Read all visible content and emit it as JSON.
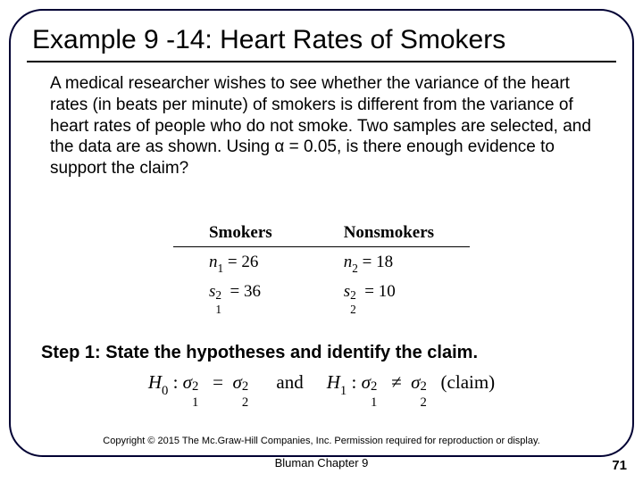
{
  "title": "Example 9 -14: Heart Rates of Smokers",
  "body_text": "A medical researcher wishes to see whether the variance of the heart rates (in beats per minute) of smokers is different from the variance of heart rates of people who do not smoke. Two samples are selected, and the data are as shown. Using α = 0.05, is there enough evidence to support the claim?",
  "table": {
    "headers": [
      "Smokers",
      "Nonsmokers"
    ],
    "rows": [
      {
        "smokers_n_label": "n",
        "smokers_n_sub": "1",
        "smokers_n_val": "26",
        "nonsmokers_n_label": "n",
        "nonsmokers_n_sub": "2",
        "nonsmokers_n_val": "18"
      },
      {
        "smokers_s_label": "s",
        "smokers_s_sub": "1",
        "smokers_s_sup": "2",
        "smokers_s_val": "36",
        "nonsmokers_s_label": "s",
        "nonsmokers_s_sub": "2",
        "nonsmokers_s_sup": "2",
        "nonsmokers_s_val": "10"
      }
    ]
  },
  "step1": "Step 1: State the hypotheses and identify the claim.",
  "hypotheses": {
    "h0_label": "H",
    "h0_sub": "0",
    "sigma": "σ",
    "eq": "=",
    "neq": "≠",
    "and": "and",
    "h1_label": "H",
    "h1_sub": "1",
    "claim": "(claim)",
    "colon": ":",
    "sup2": "2",
    "sub1": "1",
    "sub2": "2"
  },
  "footer": {
    "copyright": "Copyright © 2015 The Mc.Graw-Hill Companies, Inc.   Permission required for reproduction or display.",
    "chapter": "Bluman Chapter 9",
    "page": "71"
  }
}
